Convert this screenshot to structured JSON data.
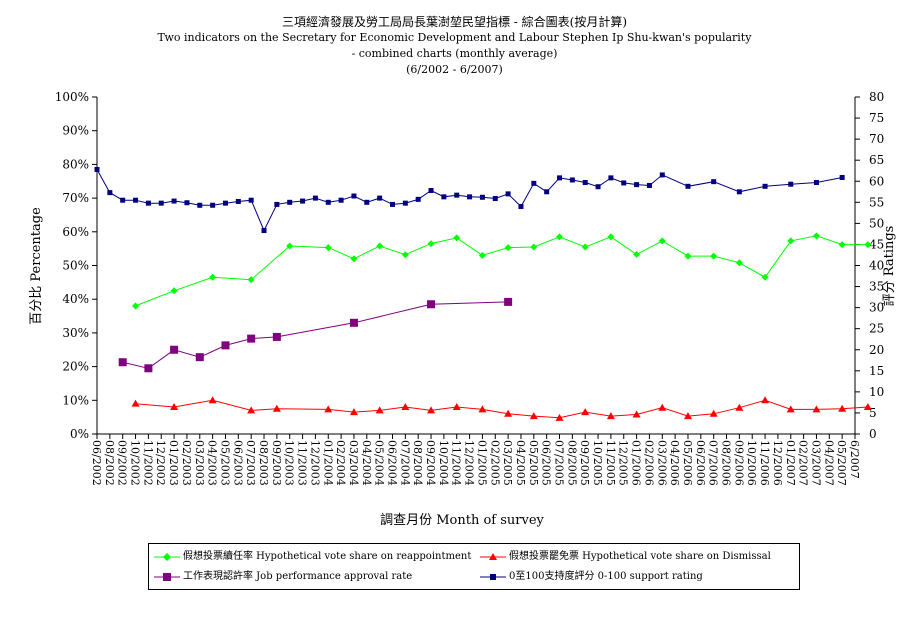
{
  "titles": {
    "line1": "三項經濟發展及勞工局局長葉澍堃民望指標 - 綜合圖表(按月計算)",
    "line2": "Two indicators on the Secretary for Economic Development and Labour Stephen Ip Shu-kwan's popularity",
    "line3": "- combined charts (monthly average)",
    "line4": "(6/2002 - 6/2007)"
  },
  "chart_data": {
    "type": "line",
    "xlabel": "調查月份  Month of survey",
    "ylabel": "百分比  Percentage",
    "y2label": "評分  Ratings",
    "ylim": [
      0,
      100
    ],
    "y2lim": [
      0,
      80
    ],
    "y_ticks": [
      "0%",
      "10%",
      "20%",
      "30%",
      "40%",
      "50%",
      "60%",
      "70%",
      "80%",
      "90%",
      "100%"
    ],
    "y2_ticks": [
      "0",
      "5",
      "10",
      "15",
      "20",
      "25",
      "30",
      "35",
      "40",
      "45",
      "50",
      "55",
      "60",
      "65",
      "70",
      "75",
      "80"
    ],
    "x_labels": [
      "06/2002",
      "08/2002",
      "09/2002",
      "10/2002",
      "11/2002",
      "12/2002",
      "01/2003",
      "02/2003",
      "03/2003",
      "04/2003",
      "05/2003",
      "06/2003",
      "07/2003",
      "08/2003",
      "09/2003",
      "10/2003",
      "11/2003",
      "12/2003",
      "01/2004",
      "02/2004",
      "03/2004",
      "04/2004",
      "05/2004",
      "06/2004",
      "07/2004",
      "08/2004",
      "09/2004",
      "10/2004",
      "11/2004",
      "12/2004",
      "01/2005",
      "02/2005",
      "03/2005",
      "04/2005",
      "05/2005",
      "06/2005",
      "07/2005",
      "08/2005",
      "09/2005",
      "10/2005",
      "11/2005",
      "12/2005",
      "01/2006",
      "02/2006",
      "03/2006",
      "04/2006",
      "05/2006",
      "06/2006",
      "07/2006",
      "08/2006",
      "09/2006",
      "10/2006",
      "11/2006",
      "12/2006",
      "01/2007",
      "02/2007",
      "03/2007",
      "04/2007",
      "05/2007",
      "6/2007"
    ],
    "legend_position": "bottom",
    "series": [
      {
        "name": "假想投票續任率 Hypothetical vote share on reappointment",
        "color": "#00ff00",
        "marker": "diamond",
        "axis": "left",
        "points": [
          [
            3,
            38
          ],
          [
            6,
            42.5
          ],
          [
            9,
            46.5
          ],
          [
            12,
            45.8
          ],
          [
            15,
            55.8
          ],
          [
            18,
            55.3
          ],
          [
            20,
            52
          ],
          [
            22,
            55.8
          ],
          [
            24,
            53.2
          ],
          [
            26,
            56.5
          ],
          [
            28,
            58.2
          ],
          [
            30,
            53
          ],
          [
            32,
            55.3
          ],
          [
            34,
            55.5
          ],
          [
            36,
            58.5
          ],
          [
            38,
            55.5
          ],
          [
            40,
            58.5
          ],
          [
            42,
            53.3
          ],
          [
            44,
            57.3
          ],
          [
            46,
            52.8
          ],
          [
            48,
            52.8
          ],
          [
            50,
            50.8
          ],
          [
            52,
            46.5
          ],
          [
            54,
            57.3
          ],
          [
            56,
            58.8
          ],
          [
            58,
            56.2
          ],
          [
            60,
            56.2
          ]
        ]
      },
      {
        "name": "假想投票罷免票 Hypothetical vote share on Dismissal",
        "color": "#ff0000",
        "marker": "triangle",
        "axis": "left",
        "points": [
          [
            3,
            9
          ],
          [
            6,
            8
          ],
          [
            9,
            10
          ],
          [
            12,
            7
          ],
          [
            14,
            7.5
          ],
          [
            18,
            7.3
          ],
          [
            20,
            6.5
          ],
          [
            22,
            7
          ],
          [
            24,
            8
          ],
          [
            26,
            7
          ],
          [
            28,
            8
          ],
          [
            30,
            7.3
          ],
          [
            32,
            6
          ],
          [
            34,
            5.3
          ],
          [
            36,
            4.8
          ],
          [
            38,
            6.5
          ],
          [
            40,
            5.3
          ],
          [
            42,
            5.8
          ],
          [
            44,
            7.8
          ],
          [
            46,
            5.3
          ],
          [
            48,
            6
          ],
          [
            50,
            7.8
          ],
          [
            52,
            10
          ],
          [
            54,
            7.3
          ],
          [
            56,
            7.3
          ],
          [
            58,
            7.5
          ],
          [
            60,
            8
          ]
        ]
      },
      {
        "name": "工作表現認許率 Job performance approval rate",
        "color": "#800080",
        "marker": "square",
        "axis": "left",
        "points": [
          [
            2,
            21.3
          ],
          [
            4,
            19.5
          ],
          [
            6,
            25
          ],
          [
            8,
            22.8
          ],
          [
            10,
            26.3
          ],
          [
            12,
            28.3
          ],
          [
            14,
            28.8
          ],
          [
            20,
            33
          ],
          [
            26,
            38.5
          ],
          [
            32,
            39.2
          ]
        ]
      },
      {
        "name": "0至100支持度評分 0-100 support rating",
        "color": "#000080",
        "marker": "square",
        "axis": "right",
        "points": [
          [
            0,
            62.8
          ],
          [
            1,
            57.3
          ],
          [
            2,
            55.5
          ],
          [
            3,
            55.5
          ],
          [
            4,
            54.8
          ],
          [
            5,
            54.8
          ],
          [
            6,
            55.3
          ],
          [
            7,
            54.9
          ],
          [
            8,
            54.3
          ],
          [
            9,
            54.3
          ],
          [
            10,
            54.8
          ],
          [
            11,
            55.2
          ],
          [
            12,
            55.5
          ],
          [
            13,
            48.3
          ],
          [
            14,
            54.5
          ],
          [
            15,
            55
          ],
          [
            16,
            55.3
          ],
          [
            17,
            56
          ],
          [
            18,
            55
          ],
          [
            19,
            55.5
          ],
          [
            20,
            56.5
          ],
          [
            21,
            55
          ],
          [
            22,
            56
          ],
          [
            23,
            54.5
          ],
          [
            24,
            54.8
          ],
          [
            25,
            55.7
          ],
          [
            26,
            57.8
          ],
          [
            27,
            56.3
          ],
          [
            28,
            56.7
          ],
          [
            29,
            56.3
          ],
          [
            30,
            56.2
          ],
          [
            31,
            55.9
          ],
          [
            32,
            57
          ],
          [
            33,
            54
          ],
          [
            34,
            59.5
          ],
          [
            35,
            57.5
          ],
          [
            36,
            60.8
          ],
          [
            37,
            60.3
          ],
          [
            38,
            59.7
          ],
          [
            39,
            58.7
          ],
          [
            40,
            60.8
          ],
          [
            41,
            59.6
          ],
          [
            42,
            59.2
          ],
          [
            43,
            59
          ],
          [
            44,
            61.5
          ],
          [
            46,
            58.8
          ],
          [
            48,
            59.9
          ],
          [
            50,
            57.5
          ],
          [
            52,
            58.8
          ],
          [
            54,
            59.3
          ],
          [
            56,
            59.7
          ],
          [
            58,
            60.9
          ]
        ]
      }
    ]
  }
}
